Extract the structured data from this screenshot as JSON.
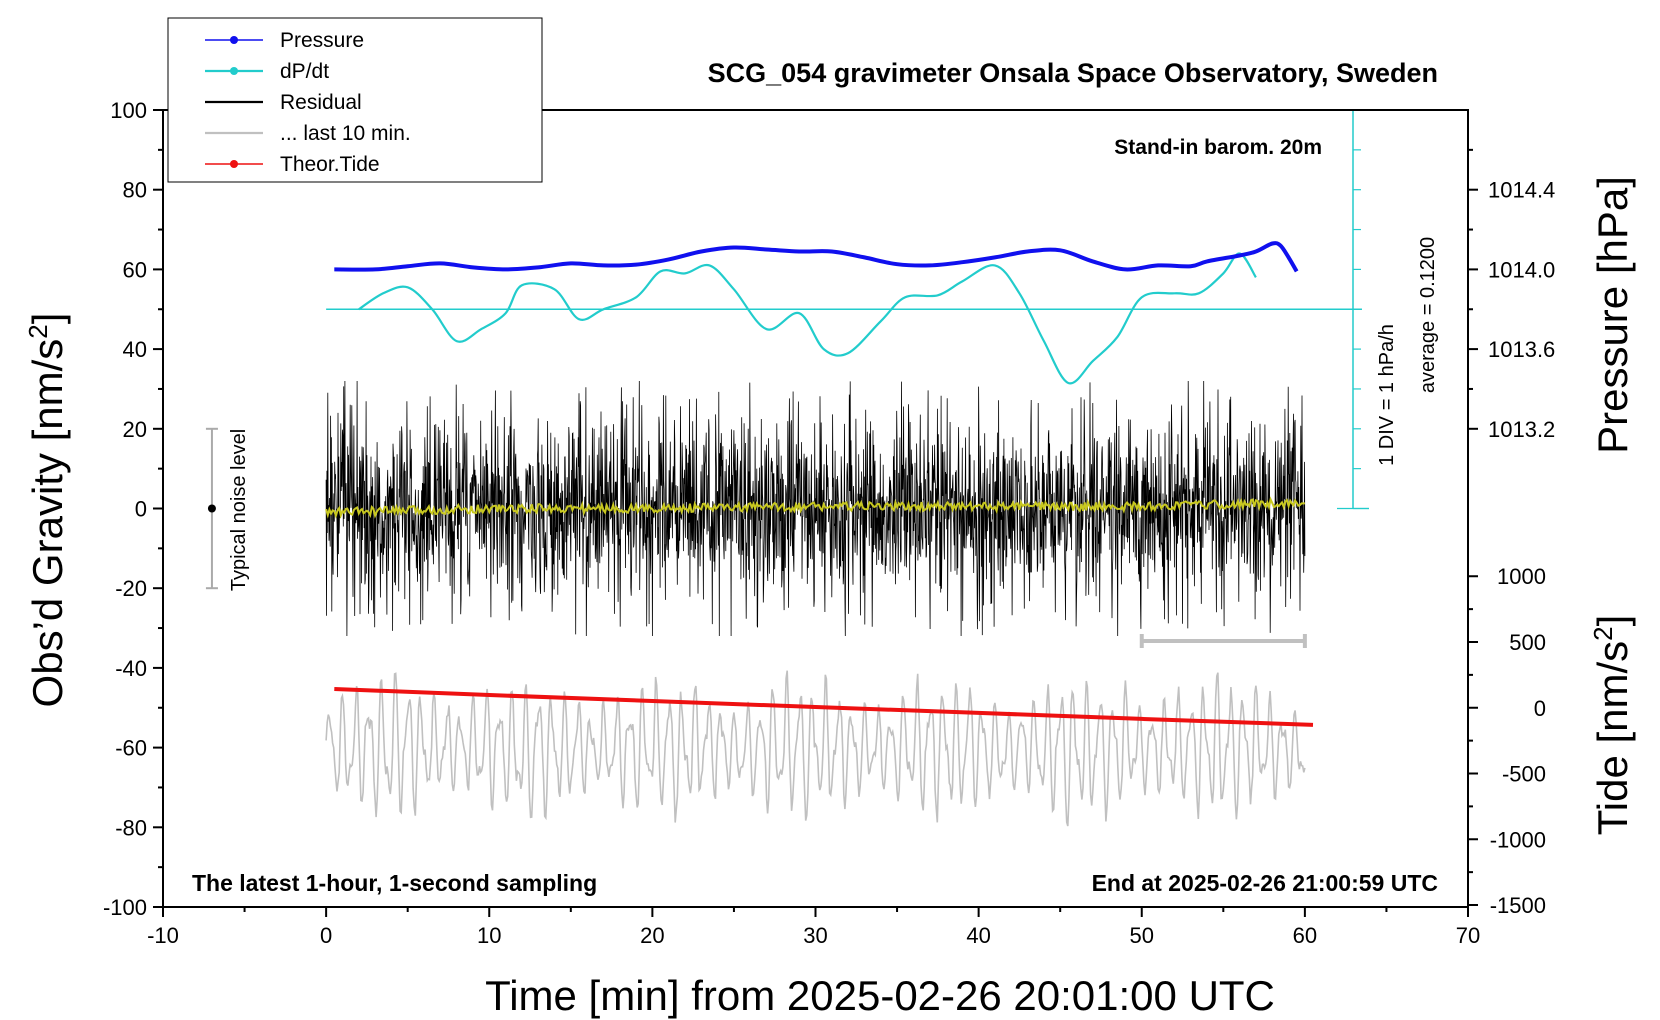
{
  "chart_data": {
    "type": "line",
    "title": "SCG_054 gravimeter Onsala Space Observatory, Sweden",
    "xlabel": "Time [min] from 2025-02-26 20:01:00 UTC",
    "ylabel_left": "Obs’d Gravity [nm/s",
    "ylabel_left_sup": "2",
    "ylabel_left_end": "]",
    "ylabel_right_pressure": "Pressure [hPa]",
    "ylabel_right_tide": "Tide [nm/s",
    "ylabel_right_tide_sup": "2",
    "ylabel_right_tide_end": "]",
    "xlim": [
      -10,
      70
    ],
    "ylim_left": [
      -100,
      100
    ],
    "x_ticks": [
      "-10",
      "0",
      "10",
      "20",
      "30",
      "40",
      "50",
      "60",
      "70"
    ],
    "y_ticks_left": [
      "100",
      "80",
      "60",
      "40",
      "20",
      "0",
      "-20",
      "-40",
      "-60",
      "-80",
      "-100"
    ],
    "y_ticks_pressure": [
      "1014.4",
      "1014.0",
      "1013.6",
      "1013.2"
    ],
    "y_ticks_tide": [
      "1000",
      "500",
      "0",
      "-500",
      "-1000",
      "-1500"
    ],
    "legend": {
      "position": "top-left",
      "entries": [
        {
          "label": "Pressure",
          "color": "#1010ee"
        },
        {
          "label": "dP/dt",
          "color": "#22cccc"
        },
        {
          "label": "Residual",
          "color": "#000000"
        },
        {
          "label": "... last 10 min.",
          "color": "#c0c0c0"
        },
        {
          "label": "Theor.Tide",
          "color": "#ee1111"
        }
      ]
    },
    "annotations": {
      "barometer": "Stand-in barom. 20m",
      "div_note": "1 DIV = 1 hPa/h",
      "average_note": "average = 0.1200",
      "noise_label": "Typical noise level",
      "bottom_left": "The latest 1-hour, 1-second sampling",
      "bottom_right": "End at 2025-02-26 21:00:59 UTC"
    },
    "noise_bar": {
      "x": -7,
      "center": 0,
      "half_range": 20
    },
    "last10_bar": {
      "x_start": 50,
      "x_end": 60
    },
    "dpdt_zero_level": 50,
    "series": [
      {
        "name": "Pressure",
        "color": "#1010ee",
        "x": [
          0.5,
          3,
          5,
          7,
          9,
          11,
          13,
          15,
          17,
          19,
          21,
          23,
          25,
          27,
          29,
          31,
          33,
          35,
          37,
          39,
          41,
          43,
          45,
          47,
          49,
          51,
          53,
          54,
          56,
          57,
          58,
          58.5,
          59,
          59.5
        ],
        "y": [
          60,
          60,
          60.8,
          61.5,
          60.5,
          60,
          60.5,
          61.5,
          61,
          61.2,
          62.5,
          64.5,
          65.5,
          65,
          64.5,
          64.5,
          63,
          61.3,
          61,
          61.8,
          63,
          64.5,
          64.8,
          62,
          60,
          61,
          60.8,
          62,
          63.5,
          64.5,
          66.5,
          66,
          63,
          59.5
        ]
      },
      {
        "name": "dP/dt",
        "color": "#22cccc",
        "x": [
          2,
          3.5,
          5,
          6.5,
          8,
          9.5,
          11,
          12,
          14,
          15.5,
          17,
          19,
          20.5,
          22,
          23.5,
          25,
          27,
          29,
          30.5,
          32,
          34,
          35.5,
          37.5,
          39,
          41,
          42.5,
          44,
          45.5,
          47,
          48.5,
          50,
          52,
          53.5,
          55,
          56,
          57
        ],
        "y": [
          50,
          54,
          55.5,
          50,
          42,
          45,
          49,
          56,
          55,
          47.5,
          50,
          53,
          59.5,
          59,
          61,
          55,
          45,
          49,
          40,
          39,
          47,
          53,
          53.5,
          57,
          61,
          54,
          42,
          31.5,
          37,
          43,
          53,
          54,
          54,
          59,
          64,
          58
        ]
      },
      {
        "name": "Residual",
        "color": "#000000",
        "x_range": [
          0,
          60
        ],
        "center": 0,
        "amplitude_typical": 15,
        "amplitude_max": 32
      },
      {
        "name": "Residual (smoothed)",
        "color": "#c8c820",
        "x": [
          0,
          10,
          20,
          30,
          40,
          50,
          60
        ],
        "y": [
          -1,
          0,
          0,
          0.5,
          0.5,
          0.5,
          1.5
        ]
      },
      {
        "name": "... last 10 min.",
        "color": "#c0c0c0",
        "x_range": [
          0,
          60
        ],
        "center": -60,
        "amplitude_typical": 12,
        "amplitude_max": 26
      },
      {
        "name": "Theor.Tide",
        "color": "#ee1111",
        "x": [
          0.5,
          10,
          20,
          30,
          40,
          50,
          60.5
        ],
        "y": [
          -45.3,
          -46.8,
          -48.3,
          -49.8,
          -51.3,
          -52.8,
          -54.3
        ]
      }
    ]
  }
}
